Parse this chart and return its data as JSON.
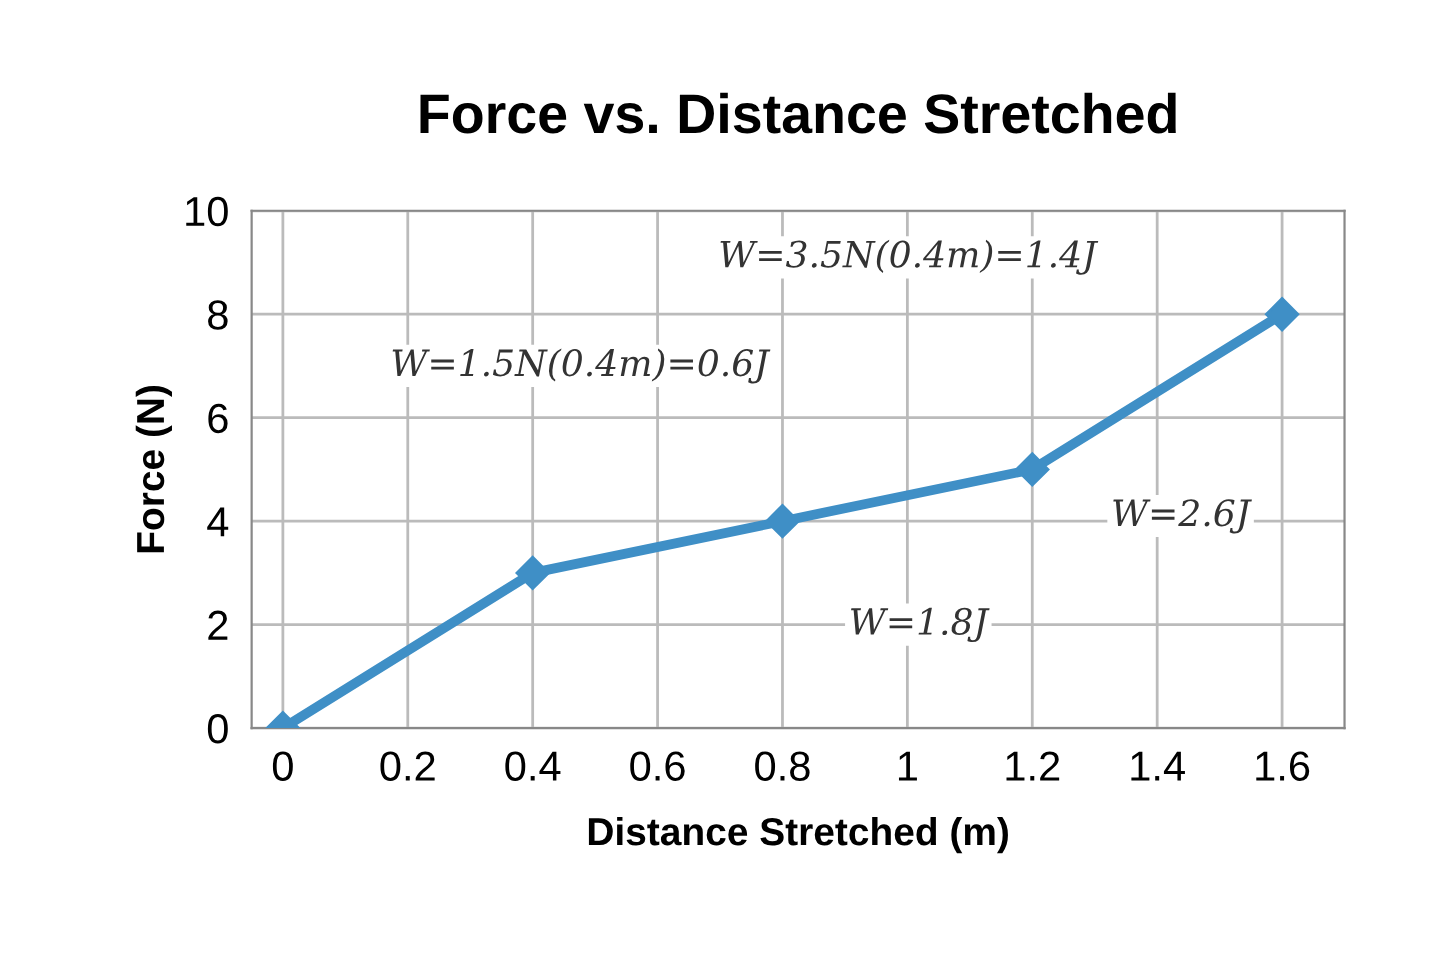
{
  "chart_data": {
    "type": "line",
    "title": "Force vs. Distance Stretched",
    "xlabel": "Distance Stretched (m)",
    "ylabel": "Force (N)",
    "x": [
      0,
      0.4,
      0.8,
      1.2,
      1.6
    ],
    "series": [
      {
        "color": "#3f8fc6",
        "values": [
          0,
          3,
          4,
          5,
          8
        ]
      }
    ],
    "xlim": [
      -0.05,
      1.7
    ],
    "xticks": [
      0,
      0.2,
      0.4,
      0.6,
      0.8,
      {
        "value": 1,
        "label": "1"
      },
      1.2,
      1.4,
      1.6
    ],
    "ylim": [
      0,
      10
    ],
    "yticks": [
      0,
      2,
      4,
      6,
      8,
      10
    ],
    "grid": true,
    "marker": "diamond",
    "line_style": "solid",
    "annotations": [
      "W=1.5N(0.4m)=0.6J",
      "W=3.5N(0.4m)=1.4J",
      "W=1.8J",
      "W=2.6J"
    ]
  }
}
